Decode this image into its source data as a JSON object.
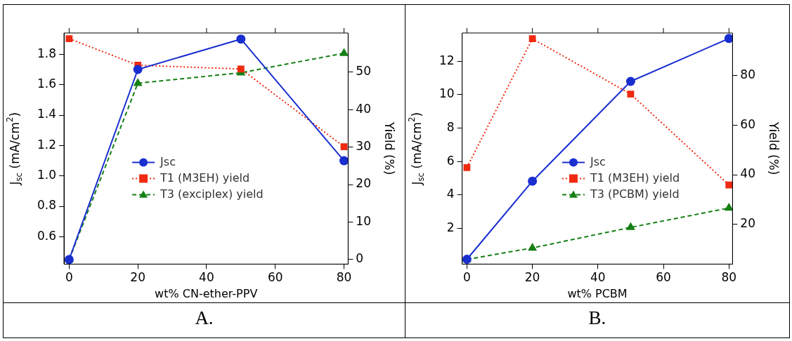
{
  "chart_data": [
    {
      "type": "line",
      "xlabel": "wt% CN-ether-PPV",
      "ylabel": "J$_{sc}$ (mA/cm$^{2}$)",
      "y2label": "Yield (%)",
      "annotations": [
        "A."
      ],
      "x": [
        0,
        20,
        50,
        80
      ],
      "xlim": [
        -1.5,
        81.2
      ],
      "xticks": [
        0,
        20,
        40,
        60,
        80
      ],
      "ylim": [
        0.42,
        1.94
      ],
      "yticks": [
        0.6,
        0.8,
        {
          "value": 1,
          "label": "1.0"
        },
        1.2,
        1.4,
        1.6,
        1.8
      ],
      "y2lim": [
        -1.2,
        60.4
      ],
      "y2ticks": [
        0,
        10,
        20,
        30,
        40,
        50
      ],
      "grid": false,
      "legend": "center",
      "series": [
        {
          "name": "Jsc",
          "color": "#1a2fd0",
          "values": [
            0.45,
            1.7,
            1.9,
            1.1
          ],
          "marker": "circle",
          "line_style": "solid"
        },
        {
          "name": "T1 (M3EH) yield",
          "color": "#f02a10",
          "values": [
            58.9,
            51.8,
            50.8,
            30.1
          ],
          "axis": "y2",
          "marker": "square",
          "line_style": "dotted"
        },
        {
          "name": "T3 (exciplex) yield",
          "color": "#158015",
          "values": [
            0,
            47,
            49.8,
            55
          ],
          "axis": "y2",
          "marker": "triangle",
          "line_style": "dashed"
        }
      ]
    },
    {
      "type": "line",
      "xlabel": "wt% PCBM",
      "ylabel": "J$_{sc}$ (mA/cm$^{2}$)",
      "y2label": "Yield (%)",
      "annotations": [
        "B."
      ],
      "x": [
        0,
        20,
        50,
        80
      ],
      "xlim": [
        -1.45,
        81.1
      ],
      "xticks": [
        0,
        20,
        40,
        60,
        80
      ],
      "ylim": [
        -0.15,
        13.7
      ],
      "yticks": [
        2,
        4,
        6,
        8,
        10,
        12
      ],
      "y2lim": [
        4,
        97.1
      ],
      "y2ticks": [
        20,
        40,
        60,
        80
      ],
      "grid": false,
      "legend": "center right",
      "series": [
        {
          "name": "Jsc",
          "color": "#1a2fd0",
          "values": [
            0.14,
            4.82,
            10.8,
            13.37
          ],
          "marker": "circle",
          "line_style": "solid"
        },
        {
          "name": "T1 (M3EH) yield",
          "color": "#f02a10",
          "values": [
            42.9,
            94.8,
            72.5,
            35.9
          ],
          "axis": "y2",
          "marker": "square",
          "line_style": "dotted"
        },
        {
          "name": "T3 (PCBM) yield",
          "color": "#158015",
          "values": [
            5.9,
            10.5,
            18.8,
            26.6
          ],
          "axis": "y2",
          "marker": "triangle",
          "line_style": "dashed"
        }
      ]
    }
  ]
}
